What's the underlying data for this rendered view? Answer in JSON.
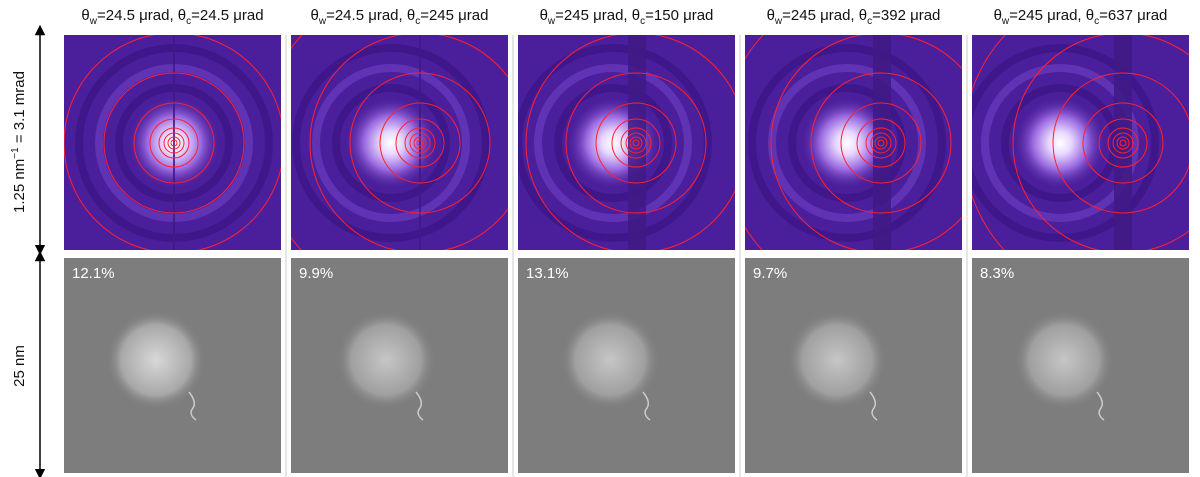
{
  "axis_labels": {
    "top": [
      "1.25 nm",
      "−1",
      " = 3.1 mrad"
    ],
    "bottom": "25 nm"
  },
  "columns": [
    {
      "title": [
        "θ",
        "w",
        "=24.5 μrad, θ",
        "c",
        "=24.5 μrad"
      ],
      "error": "12.1%"
    },
    {
      "title": [
        "θ",
        "w",
        "=24.5 μrad, θ",
        "c",
        "=245 μrad"
      ],
      "error": "9.9%"
    },
    {
      "title": [
        "θ",
        "w",
        "=245 μrad, θ",
        "c",
        "=150 μrad"
      ],
      "error": "13.1%"
    },
    {
      "title": [
        "θ",
        "w",
        "=245 μrad, θ",
        "c",
        "=392 μrad"
      ],
      "error": "9.7%"
    },
    {
      "title": [
        "θ",
        "w",
        "=245 μrad, θ",
        "c",
        "=637 μrad"
      ],
      "error": "8.3%"
    }
  ]
}
